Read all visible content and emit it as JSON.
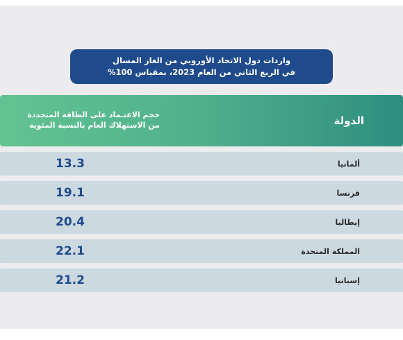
{
  "title": {
    "line1": "واردات دول الاتحاد الأوروبي من الغاز المسال",
    "line2": "في الربع الثاني من العام 2023، بمقياس 100%"
  },
  "table": {
    "headers": {
      "country": "الدولة",
      "value_line1": "حجم الاعتـماد على الطاقة المتجددة",
      "value_line2": "من الاستهلاك العام بالنسبة المئوية"
    },
    "rows": [
      {
        "country": "ألمانيا",
        "value": "13.3"
      },
      {
        "country": "فرنسا",
        "value": "19.1"
      },
      {
        "country": "إيطاليا",
        "value": "20.4"
      },
      {
        "country": "المملكة المتحدة",
        "value": "22.1"
      },
      {
        "country": "إسبانيا",
        "value": "21.2"
      }
    ]
  },
  "colors": {
    "title_bg": "#1f4b8c",
    "header_gradient_start": "#63c392",
    "header_gradient_end": "#2e8e80",
    "row_bg": "#cdd9e1",
    "value_text": "#1f4b8c"
  }
}
